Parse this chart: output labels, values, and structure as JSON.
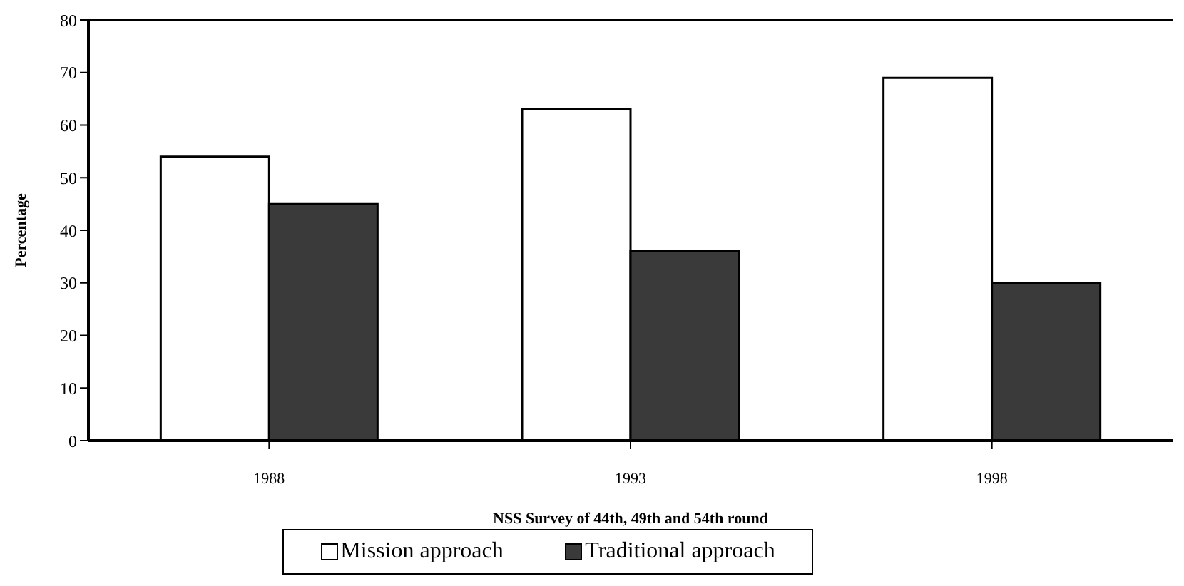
{
  "chart_data": {
    "type": "bar",
    "xlabel": "NSS Survey of 44th, 49th and 54th round",
    "ylabel": "Percentage",
    "categories": [
      "1988",
      "1993",
      "1998"
    ],
    "series": [
      {
        "name": "Mission approach",
        "color": "#ffffff",
        "values": [
          54,
          63,
          69
        ]
      },
      {
        "name": "Traditional approach",
        "color": "#3a3a3a",
        "values": [
          45,
          36,
          30
        ]
      }
    ],
    "ylim": [
      0,
      80
    ],
    "yticks": [
      0,
      10,
      20,
      30,
      40,
      50,
      60,
      70,
      80
    ],
    "grid": false,
    "legend": "bottom"
  }
}
